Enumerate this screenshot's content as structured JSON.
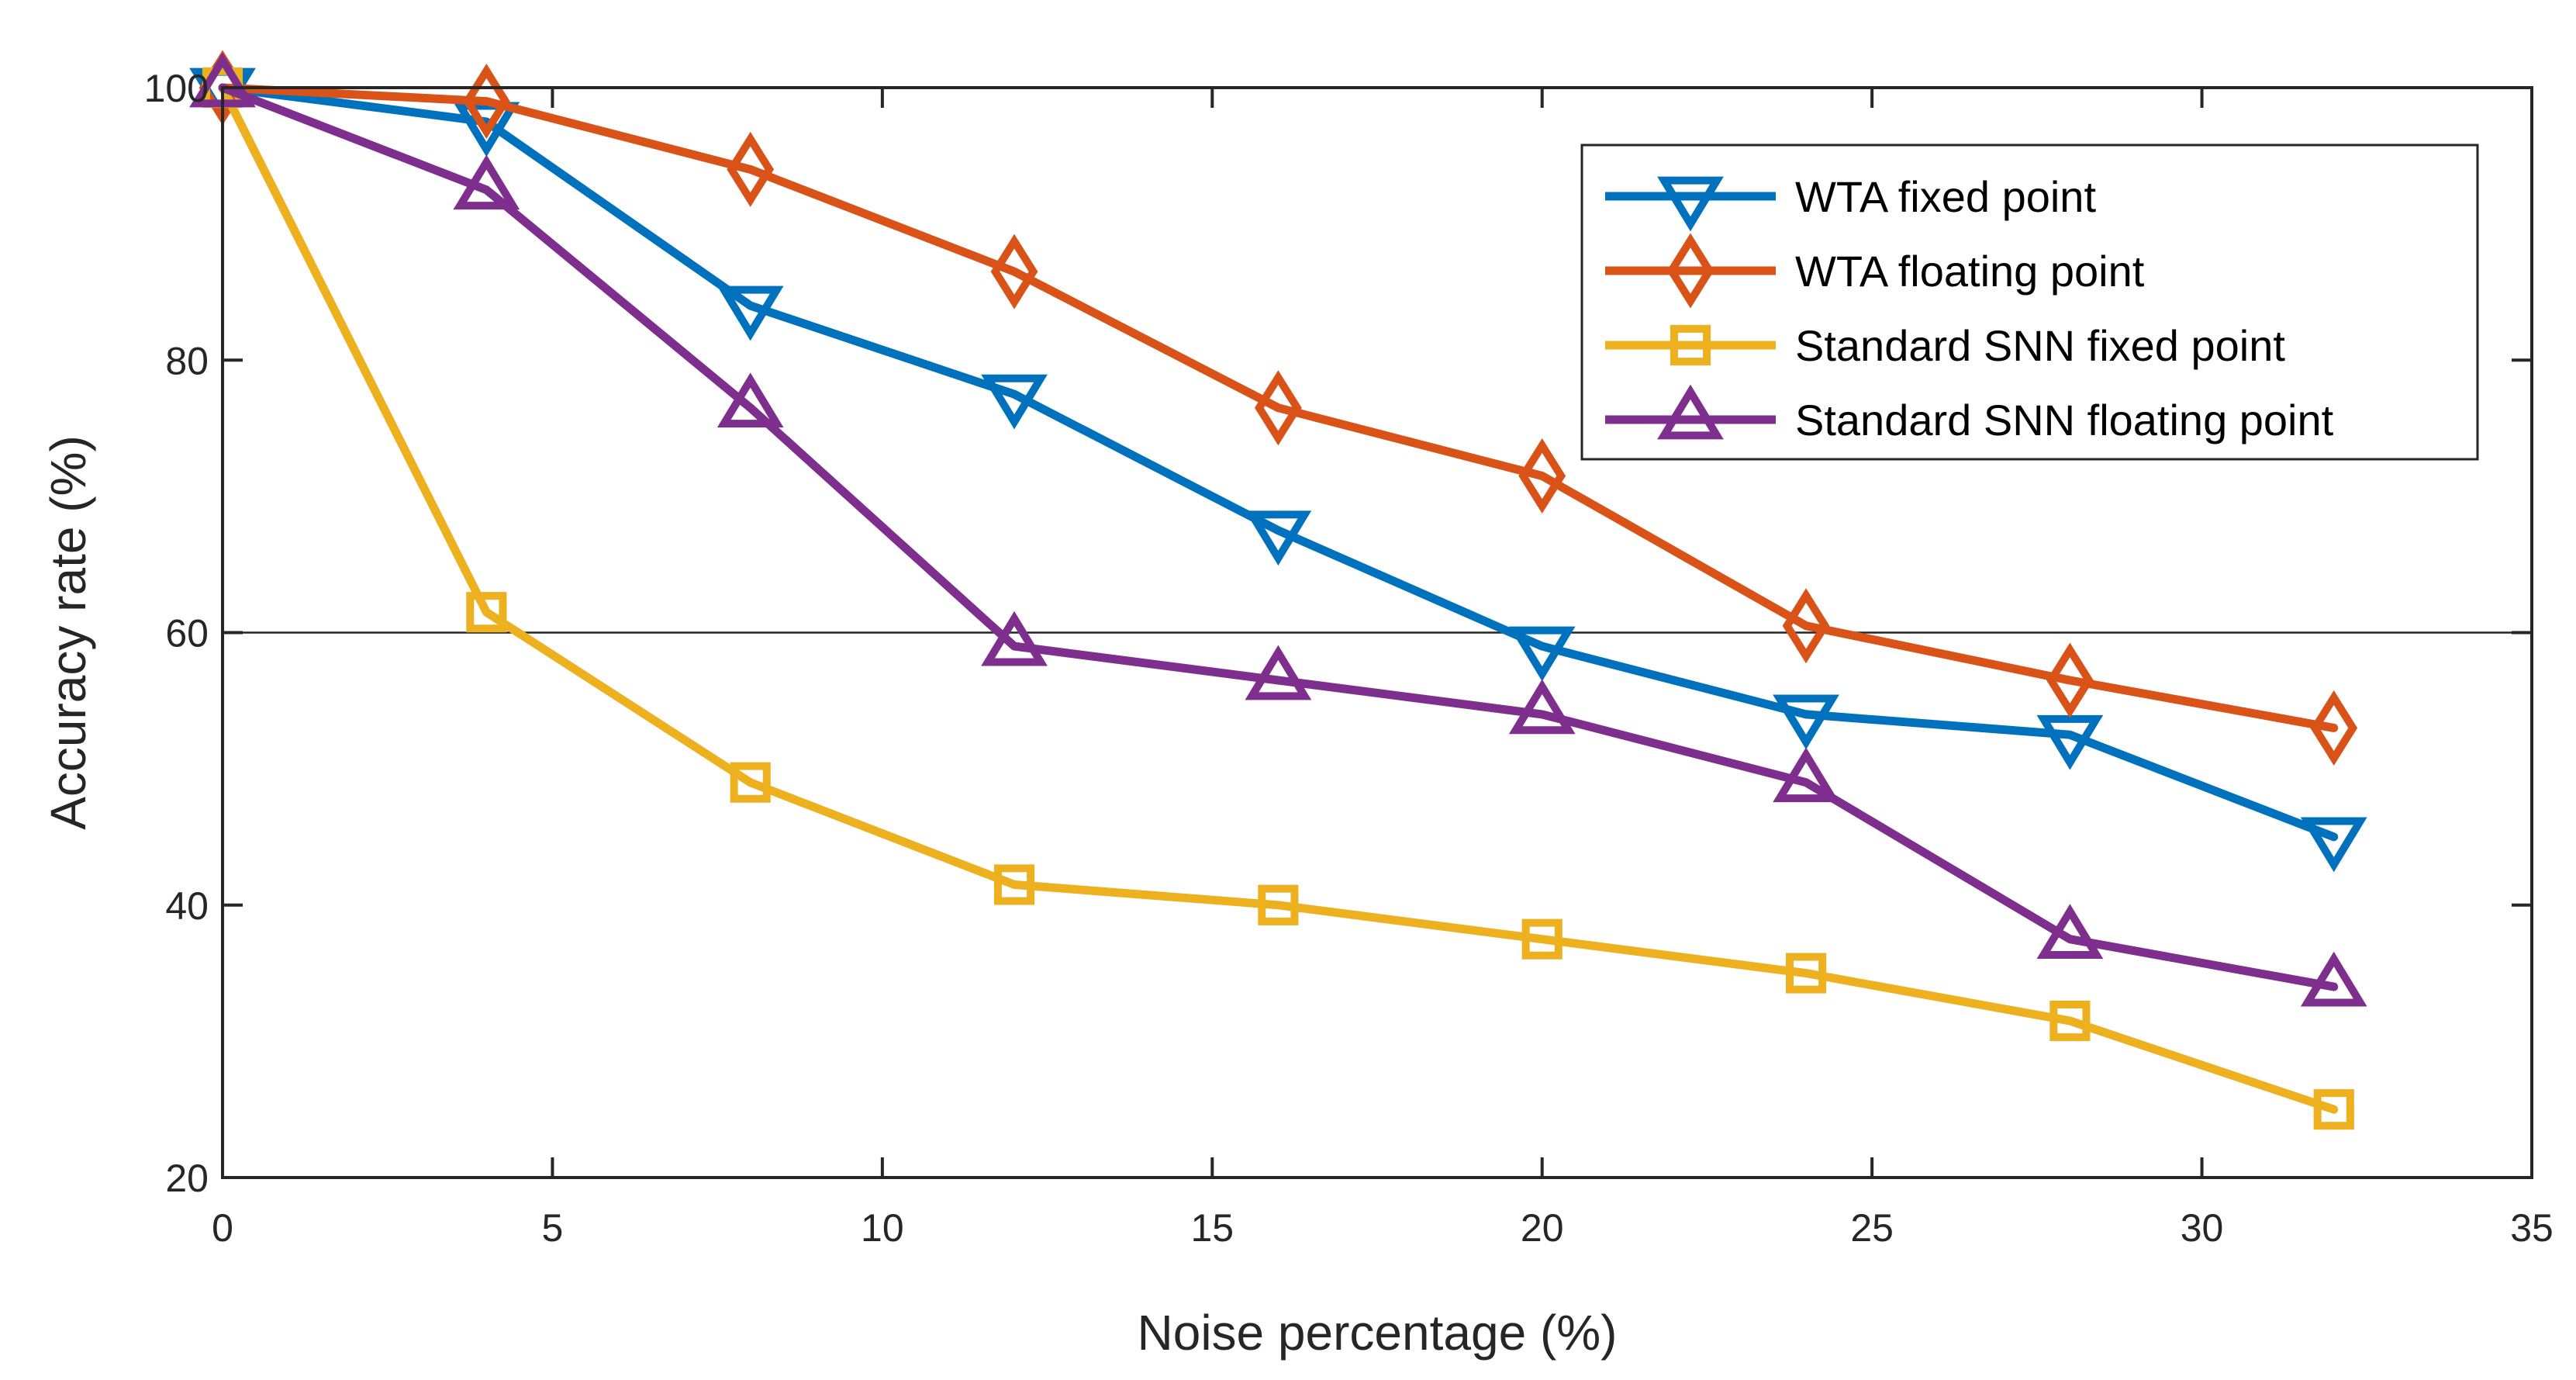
{
  "chart_data": {
    "type": "line",
    "title": "",
    "xlabel": "Noise percentage (%)",
    "ylabel": "Accuracy rate (%)",
    "xlim": [
      0,
      35
    ],
    "ylim": [
      20,
      100
    ],
    "xticks": [
      0,
      5,
      10,
      15,
      20,
      25,
      30,
      35
    ],
    "yticks": [
      20,
      40,
      60,
      80,
      100
    ],
    "grid": false,
    "reference_line_y": 60,
    "legend_position": "top-right",
    "x": [
      0,
      4,
      8,
      12,
      16,
      20,
      24,
      28,
      32
    ],
    "series": [
      {
        "name": "WTA fixed point",
        "marker": "triangle-down",
        "color": "#0072BD",
        "values": [
          100,
          97.5,
          84,
          77.5,
          67.5,
          59,
          54,
          52.5,
          45
        ]
      },
      {
        "name": "WTA floating point",
        "marker": "diamond",
        "color": "#D95319",
        "values": [
          100,
          99,
          94,
          86.5,
          76.5,
          71.5,
          60.5,
          56.5,
          53
        ]
      },
      {
        "name": "Standard SNN fixed point",
        "marker": "square",
        "color": "#EDB120",
        "values": [
          100,
          61.5,
          49,
          41.5,
          40,
          37.5,
          35,
          31.5,
          25
        ]
      },
      {
        "name": "Standard SNN floating point",
        "marker": "triangle-up",
        "color": "#7E2F8E",
        "values": [
          100,
          92.5,
          76.5,
          59,
          56.5,
          54,
          49,
          37.5,
          34
        ]
      }
    ]
  }
}
